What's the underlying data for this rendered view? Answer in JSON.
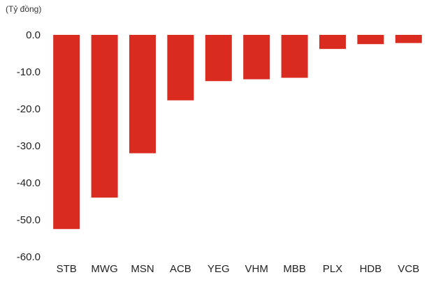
{
  "chart_data": {
    "type": "bar",
    "unit_label": "(Tỷ đồng)",
    "categories": [
      "STB",
      "MWG",
      "MSN",
      "ACB",
      "YEG",
      "VHM",
      "MBB",
      "PLX",
      "HDB",
      "VCB"
    ],
    "values": [
      -52.5,
      -44.0,
      -32.0,
      -17.7,
      -12.5,
      -12.0,
      -11.6,
      -3.8,
      -2.5,
      -2.2
    ],
    "y_ticks": [
      "0.0",
      "-10.0",
      "-20.0",
      "-30.0",
      "-40.0",
      "-50.0",
      "-60.0"
    ],
    "ylim": [
      -60,
      0
    ],
    "grid": false,
    "bar_color": "#d92b20"
  }
}
